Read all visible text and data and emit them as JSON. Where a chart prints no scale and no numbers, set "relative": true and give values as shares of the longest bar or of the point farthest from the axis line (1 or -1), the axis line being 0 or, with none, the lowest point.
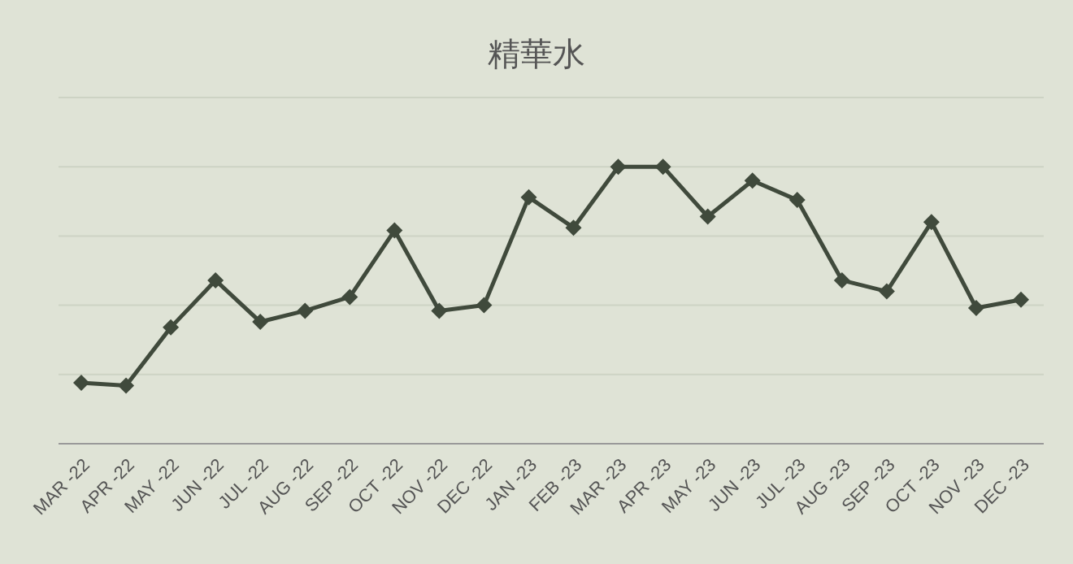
{
  "chart_data": {
    "type": "line",
    "title": "精華水",
    "relative": true,
    "grid": "y",
    "marker": "diamond",
    "line_style": "solid",
    "categories": [
      "MAR -22",
      "APR -22",
      "MAY -22",
      "JUN -22",
      "JUL -22",
      "AUG -22",
      "SEP -22",
      "OCT -22",
      "NOV -22",
      "DEC -22",
      "JAN -23",
      "FEB -23",
      "MAR -23",
      "APR -23",
      "MAY -23",
      "JUN -23",
      "JUL -23",
      "AUG -23",
      "SEP -23",
      "OCT -23",
      "NOV -23",
      "DEC -23"
    ],
    "series": [
      {
        "color": "#404a3c",
        "values": [
          0.22,
          0.21,
          0.42,
          0.59,
          0.44,
          0.48,
          0.53,
          0.77,
          0.48,
          0.5,
          0.89,
          0.78,
          1,
          1,
          0.82,
          0.95,
          0.88,
          0.59,
          0.55,
          0.8,
          0.49,
          0.52
        ]
      }
    ]
  }
}
